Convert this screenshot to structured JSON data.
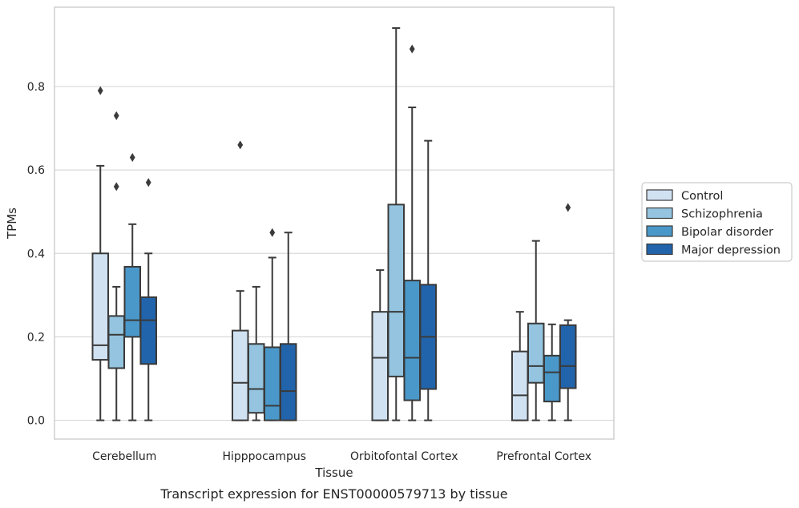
{
  "chart_data": {
    "type": "boxplot",
    "caption": "Transcript expression for ENST00000579713 by tissue",
    "xlabel": "Tissue",
    "ylabel": "TPMs",
    "ylim": [
      -0.045,
      0.99
    ],
    "yticks": [
      0.0,
      0.2,
      0.4,
      0.6,
      0.8
    ],
    "ytick_labels": [
      "0.0",
      "0.2",
      "0.4",
      "0.6",
      "0.8"
    ],
    "grid": "horizontal",
    "legend_position": "right",
    "categories": [
      "Cerebellum",
      "Hipppocampus",
      "Orbitofontal Cortex",
      "Prefrontal Cortex"
    ],
    "series": [
      {
        "name": "Control",
        "color": "#d0e1f2",
        "boxes": [
          {
            "min": 0.0,
            "q1": 0.145,
            "median": 0.18,
            "q3": 0.4,
            "max": 0.61,
            "outliers": [
              0.79
            ]
          },
          {
            "min": 0.0,
            "q1": 0.0,
            "median": 0.09,
            "q3": 0.215,
            "max": 0.31,
            "outliers": [
              0.66
            ]
          },
          {
            "min": 0.0,
            "q1": 0.0,
            "median": 0.15,
            "q3": 0.26,
            "max": 0.36,
            "outliers": []
          },
          {
            "min": 0.0,
            "q1": 0.0,
            "median": 0.06,
            "q3": 0.165,
            "max": 0.26,
            "outliers": []
          }
        ]
      },
      {
        "name": "Schizophrenia",
        "color": "#94c4df",
        "boxes": [
          {
            "min": 0.0,
            "q1": 0.125,
            "median": 0.205,
            "q3": 0.25,
            "max": 0.32,
            "outliers": [
              0.56,
              0.73
            ]
          },
          {
            "min": 0.0,
            "q1": 0.018,
            "median": 0.075,
            "q3": 0.183,
            "max": 0.32,
            "outliers": []
          },
          {
            "min": 0.0,
            "q1": 0.105,
            "median": 0.26,
            "q3": 0.517,
            "max": 0.94,
            "outliers": []
          },
          {
            "min": 0.0,
            "q1": 0.09,
            "median": 0.13,
            "q3": 0.232,
            "max": 0.43,
            "outliers": []
          }
        ]
      },
      {
        "name": "Bipolar disorder",
        "color": "#4a98c9",
        "boxes": [
          {
            "min": 0.0,
            "q1": 0.2,
            "median": 0.24,
            "q3": 0.368,
            "max": 0.47,
            "outliers": [
              0.63
            ]
          },
          {
            "min": 0.0,
            "q1": 0.0,
            "median": 0.035,
            "q3": 0.175,
            "max": 0.39,
            "outliers": [
              0.45
            ]
          },
          {
            "min": 0.0,
            "q1": 0.048,
            "median": 0.15,
            "q3": 0.335,
            "max": 0.75,
            "outliers": [
              0.89
            ]
          },
          {
            "min": 0.0,
            "q1": 0.045,
            "median": 0.115,
            "q3": 0.155,
            "max": 0.23,
            "outliers": []
          }
        ]
      },
      {
        "name": "Major depression",
        "color": "#2164ab",
        "boxes": [
          {
            "min": 0.0,
            "q1": 0.135,
            "median": 0.24,
            "q3": 0.295,
            "max": 0.4,
            "outliers": [
              0.57
            ]
          },
          {
            "min": 0.0,
            "q1": 0.0,
            "median": 0.07,
            "q3": 0.183,
            "max": 0.45,
            "outliers": []
          },
          {
            "min": 0.0,
            "q1": 0.075,
            "median": 0.2,
            "q3": 0.325,
            "max": 0.67,
            "outliers": []
          },
          {
            "min": 0.0,
            "q1": 0.077,
            "median": 0.13,
            "q3": 0.228,
            "max": 0.24,
            "outliers": [
              0.51
            ]
          }
        ]
      }
    ]
  }
}
